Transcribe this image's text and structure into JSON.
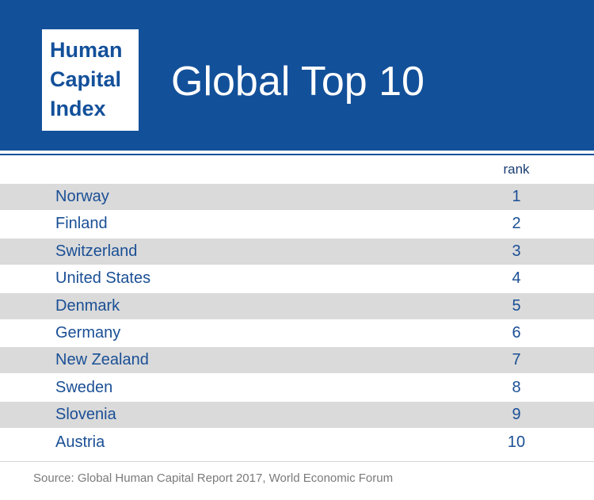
{
  "header": {
    "logo_lines": [
      "Human",
      "Capital",
      "Index"
    ],
    "title": "Global Top 10"
  },
  "colors": {
    "brand_blue": "#13509a",
    "row_shade": "#dadada",
    "text_blue": "#1a4f95"
  },
  "chart_data": {
    "type": "table",
    "title": "Global Top 10",
    "columns": [
      "",
      "rank"
    ],
    "rows": [
      {
        "country": "Norway",
        "rank": "1"
      },
      {
        "country": "Finland",
        "rank": "2"
      },
      {
        "country": "Switzerland",
        "rank": "3"
      },
      {
        "country": "United States",
        "rank": "4"
      },
      {
        "country": "Denmark",
        "rank": "5"
      },
      {
        "country": "Germany",
        "rank": "6"
      },
      {
        "country": "New Zealand",
        "rank": "7"
      },
      {
        "country": "Sweden",
        "rank": "8"
      },
      {
        "country": "Slovenia",
        "rank": "9"
      },
      {
        "country": "Austria",
        "rank": "10"
      }
    ]
  },
  "footer": {
    "source": "Source: Global Human Capital Report 2017, World Economic Forum"
  }
}
